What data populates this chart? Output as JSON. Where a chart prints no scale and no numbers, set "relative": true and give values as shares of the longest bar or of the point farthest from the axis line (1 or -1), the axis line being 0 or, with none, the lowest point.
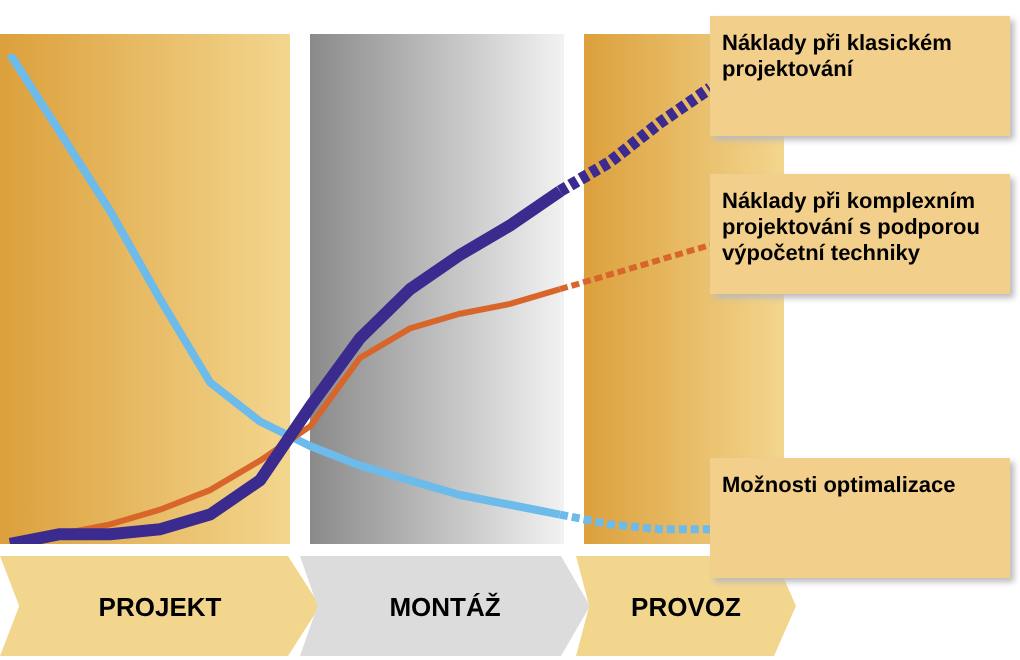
{
  "chart_data": {
    "type": "line",
    "relative": true,
    "legend": false,
    "categories": [
      null,
      null,
      null,
      null,
      null,
      null,
      null,
      null,
      null,
      null,
      null,
      null,
      null,
      null,
      null
    ],
    "series": [
      {
        "color": "#3b2b8f",
        "line_style": "solid",
        "values": [
          0,
          0.02,
          0.02,
          0.03,
          0.06,
          0.13,
          0.28,
          0.42,
          0.52,
          0.59,
          0.65,
          0.72,
          null,
          null,
          null
        ]
      },
      {
        "name": "Náklady při klasickém projektování",
        "color": "#3b2b8f",
        "line_style": "dashed",
        "values": [
          null,
          null,
          null,
          null,
          null,
          null,
          null,
          null,
          null,
          null,
          null,
          0.72,
          0.78,
          0.86,
          0.93
        ]
      },
      {
        "color": "#d8662a",
        "line_style": "solid",
        "values": [
          0,
          0.02,
          0.04,
          0.07,
          0.11,
          0.17,
          0.24,
          0.38,
          0.44,
          0.47,
          0.49,
          0.52,
          null,
          null,
          null
        ]
      },
      {
        "name": "Náklady při komplexním projektování s podporou výpočetní techniky",
        "color": "#d8662a",
        "line_style": "dashed",
        "values": [
          null,
          null,
          null,
          null,
          null,
          null,
          null,
          null,
          null,
          null,
          null,
          0.52,
          0.55,
          0.58,
          0.61
        ]
      },
      {
        "color": "#6cbbea",
        "line_style": "solid",
        "values": [
          1,
          0.84,
          0.68,
          0.5,
          0.33,
          0.25,
          0.2,
          0.16,
          0.13,
          0.1,
          0.08,
          0.06,
          null,
          null,
          null
        ]
      },
      {
        "name": "Možnosti optimalizace",
        "color": "#6cbbea",
        "line_style": "dashed",
        "values": [
          null,
          null,
          null,
          null,
          null,
          null,
          null,
          null,
          null,
          null,
          null,
          0.06,
          0.04,
          0.03,
          0.03
        ]
      }
    ],
    "annotations": [
      "PROJEKT",
      "MONTÁŽ",
      "PROVOZ"
    ]
  }
}
